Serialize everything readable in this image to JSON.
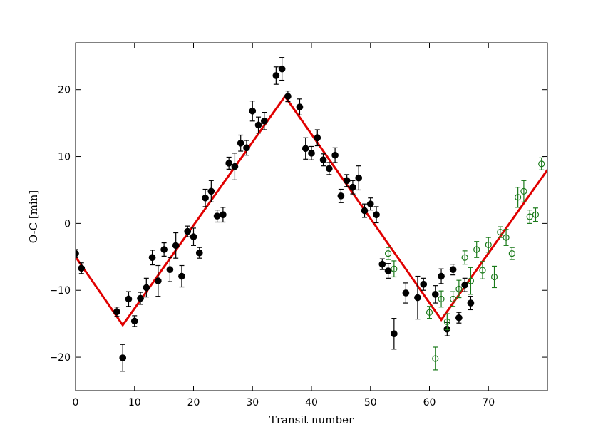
{
  "chart_data": {
    "type": "scatter",
    "title": "",
    "xlabel": "Transit number",
    "ylabel": "O-C [min]",
    "xlim": [
      0,
      80
    ],
    "ylim": [
      -25,
      27
    ],
    "x_ticks": [
      0,
      10,
      20,
      30,
      40,
      50,
      60,
      70
    ],
    "x_tick_labels": [
      "0",
      "10",
      "20",
      "30",
      "40",
      "50",
      "60",
      "70"
    ],
    "y_ticks": [
      -20,
      -10,
      0,
      10,
      20
    ],
    "y_tick_labels": [
      "−20",
      "−10",
      "0",
      "10",
      "20"
    ],
    "grid": false,
    "legend": "none",
    "series": [
      {
        "marker": "filled-circle",
        "color": "#000000",
        "points": [
          {
            "x": 0,
            "y": -4.5,
            "err": 0.6
          },
          {
            "x": 1,
            "y": -6.7,
            "err": 0.8
          },
          {
            "x": 7,
            "y": -13.2,
            "err": 0.7
          },
          {
            "x": 8,
            "y": -20.1,
            "err": 2.0
          },
          {
            "x": 9,
            "y": -11.3,
            "err": 1.1
          },
          {
            "x": 10,
            "y": -14.6,
            "err": 0.8
          },
          {
            "x": 11,
            "y": -11.2,
            "err": 0.9
          },
          {
            "x": 12,
            "y": -9.6,
            "err": 1.4
          },
          {
            "x": 13,
            "y": -5.1,
            "err": 1.1
          },
          {
            "x": 14,
            "y": -8.6,
            "err": 2.3
          },
          {
            "x": 15,
            "y": -3.9,
            "err": 1.0
          },
          {
            "x": 16,
            "y": -6.9,
            "err": 1.8
          },
          {
            "x": 17,
            "y": -3.3,
            "err": 1.9
          },
          {
            "x": 18,
            "y": -7.9,
            "err": 1.6
          },
          {
            "x": 19,
            "y": -1.2,
            "err": 0.8
          },
          {
            "x": 20,
            "y": -2.0,
            "err": 1.3
          },
          {
            "x": 21,
            "y": -4.4,
            "err": 0.8
          },
          {
            "x": 22,
            "y": 3.8,
            "err": 1.3
          },
          {
            "x": 23,
            "y": 4.8,
            "err": 1.6
          },
          {
            "x": 24,
            "y": 1.1,
            "err": 0.9
          },
          {
            "x": 25,
            "y": 1.3,
            "err": 1.1
          },
          {
            "x": 26,
            "y": 9.0,
            "err": 0.9
          },
          {
            "x": 27,
            "y": 8.5,
            "err": 2.0
          },
          {
            "x": 28,
            "y": 12.0,
            "err": 1.2
          },
          {
            "x": 29,
            "y": 11.3,
            "err": 1.1
          },
          {
            "x": 30,
            "y": 16.8,
            "err": 1.5
          },
          {
            "x": 31,
            "y": 14.7,
            "err": 1.2
          },
          {
            "x": 32,
            "y": 15.3,
            "err": 1.3
          },
          {
            "x": 34,
            "y": 22.1,
            "err": 1.3
          },
          {
            "x": 35,
            "y": 23.1,
            "err": 1.7
          },
          {
            "x": 36,
            "y": 19.0,
            "err": 0.8
          },
          {
            "x": 38,
            "y": 17.4,
            "err": 1.2
          },
          {
            "x": 39,
            "y": 11.2,
            "err": 1.6
          },
          {
            "x": 40,
            "y": 10.5,
            "err": 1.0
          },
          {
            "x": 41,
            "y": 12.8,
            "err": 1.2
          },
          {
            "x": 42,
            "y": 9.5,
            "err": 0.9
          },
          {
            "x": 43,
            "y": 8.2,
            "err": 0.9
          },
          {
            "x": 44,
            "y": 10.2,
            "err": 1.1
          },
          {
            "x": 45,
            "y": 4.1,
            "err": 1.0
          },
          {
            "x": 46,
            "y": 6.4,
            "err": 0.9
          },
          {
            "x": 47,
            "y": 5.4,
            "err": 1.0
          },
          {
            "x": 48,
            "y": 6.8,
            "err": 1.8
          },
          {
            "x": 49,
            "y": 1.9,
            "err": 1.0
          },
          {
            "x": 50,
            "y": 2.9,
            "err": 0.9
          },
          {
            "x": 51,
            "y": 1.3,
            "err": 1.2
          },
          {
            "x": 52,
            "y": -6.1,
            "err": 0.8
          },
          {
            "x": 53,
            "y": -7.1,
            "err": 1.1
          },
          {
            "x": 54,
            "y": -16.5,
            "err": 2.3
          },
          {
            "x": 56,
            "y": -10.4,
            "err": 1.5
          },
          {
            "x": 58,
            "y": -11.1,
            "err": 3.2
          },
          {
            "x": 59,
            "y": -9.1,
            "err": 0.9
          },
          {
            "x": 61,
            "y": -10.6,
            "err": 1.3
          },
          {
            "x": 62,
            "y": -7.9,
            "err": 1.1
          },
          {
            "x": 63,
            "y": -15.8,
            "err": 1.0
          },
          {
            "x": 64,
            "y": -6.9,
            "err": 0.8
          },
          {
            "x": 65,
            "y": -14.1,
            "err": 0.8
          },
          {
            "x": 66,
            "y": -9.2,
            "err": 1.0
          },
          {
            "x": 67,
            "y": -11.9,
            "err": 1.0
          }
        ]
      },
      {
        "marker": "open-circle",
        "color": "#1a7a1a",
        "points": [
          {
            "x": 53,
            "y": -4.5,
            "err": 0.9
          },
          {
            "x": 54,
            "y": -6.8,
            "err": 1.2
          },
          {
            "x": 60,
            "y": -13.3,
            "err": 0.9
          },
          {
            "x": 61,
            "y": -20.2,
            "err": 1.7
          },
          {
            "x": 62,
            "y": -11.3,
            "err": 1.2
          },
          {
            "x": 63,
            "y": -14.7,
            "err": 1.2
          },
          {
            "x": 64,
            "y": -11.3,
            "err": 1.1
          },
          {
            "x": 65,
            "y": -9.8,
            "err": 1.3
          },
          {
            "x": 66,
            "y": -5.1,
            "err": 1.0
          },
          {
            "x": 67,
            "y": -8.6,
            "err": 2.0
          },
          {
            "x": 68,
            "y": -3.9,
            "err": 1.2
          },
          {
            "x": 69,
            "y": -7.0,
            "err": 1.3
          },
          {
            "x": 70,
            "y": -3.2,
            "err": 1.1
          },
          {
            "x": 71,
            "y": -8.0,
            "err": 1.6
          },
          {
            "x": 72,
            "y": -1.3,
            "err": 0.8
          },
          {
            "x": 73,
            "y": -2.1,
            "err": 1.2
          },
          {
            "x": 74,
            "y": -4.5,
            "err": 0.9
          },
          {
            "x": 75,
            "y": 3.9,
            "err": 1.5
          },
          {
            "x": 76,
            "y": 4.8,
            "err": 1.6
          },
          {
            "x": 77,
            "y": 1.0,
            "err": 1.0
          },
          {
            "x": 78,
            "y": 1.3,
            "err": 1.0
          },
          {
            "x": 79,
            "y": 8.9,
            "err": 0.9
          }
        ]
      },
      {
        "type": "line",
        "color": "#e00000",
        "points": [
          {
            "x": 0,
            "y": -5.0
          },
          {
            "x": 8,
            "y": -15.2
          },
          {
            "x": 35.5,
            "y": 19.0
          },
          {
            "x": 62,
            "y": -14.4
          },
          {
            "x": 80,
            "y": 8.0
          }
        ]
      }
    ]
  }
}
